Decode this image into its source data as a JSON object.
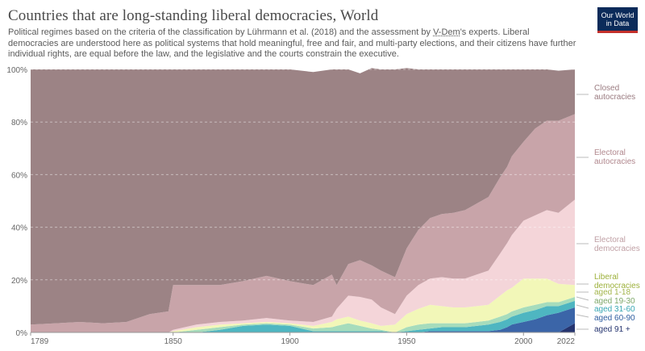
{
  "header": {
    "title": "Countries that are long-standing liberal democracies, World",
    "subtitle_part1": "Political regimes based on the criteria of the classification by Lührmann et al. (2018) and the assessment by ",
    "subtitle_link": "V-Dem",
    "subtitle_part2": "'s experts. Liberal democracies are understood here as political systems that hold meaningful, free and fair, and multi-party elections, and their citizens have further individual rights, are equal before the law, and the legislative and the courts constrain the executive.",
    "logo_line1": "Our World",
    "logo_line2": "in Data"
  },
  "chart_data": {
    "type": "area",
    "stacked": true,
    "title": "Countries that are long-standing liberal democracies, World",
    "xlabel": "",
    "ylabel": "",
    "xlim": [
      1789,
      2022
    ],
    "ylim": [
      0,
      100
    ],
    "x_ticks": [
      "1789",
      "1850",
      "1900",
      "1950",
      "2000",
      "2022"
    ],
    "y_ticks": [
      "0%",
      "20%",
      "40%",
      "60%",
      "80%",
      "100%"
    ],
    "grid": true,
    "legend_position": "right",
    "years": [
      1789,
      1800,
      1810,
      1820,
      1830,
      1840,
      1848,
      1850,
      1860,
      1870,
      1880,
      1890,
      1900,
      1910,
      1918,
      1920,
      1925,
      1930,
      1935,
      1939,
      1945,
      1950,
      1955,
      1960,
      1965,
      1970,
      1975,
      1980,
      1985,
      1990,
      1993,
      1995,
      2000,
      2005,
      2010,
      2015,
      2022
    ],
    "series": [
      {
        "name": "aged 91 +",
        "color": "#25346f",
        "values": [
          0,
          0,
          0,
          0,
          0,
          0,
          0,
          0,
          0,
          0,
          0,
          0,
          0,
          0,
          0,
          0,
          0,
          0,
          0,
          0,
          0,
          0,
          0,
          0,
          0,
          0,
          0,
          0,
          0,
          0,
          0,
          0,
          0,
          0,
          0,
          0,
          3.5
        ]
      },
      {
        "name": "aged 60-90",
        "color": "#3b65a8",
        "values": [
          0,
          0,
          0,
          0,
          0,
          0,
          0,
          0,
          0,
          0,
          0,
          0,
          0,
          0,
          0,
          0,
          0,
          0,
          0,
          0,
          0,
          0,
          0,
          0.5,
          0.5,
          0.5,
          0.5,
          0.5,
          0.5,
          1,
          2,
          3,
          4,
          5,
          6.5,
          7.5,
          6
        ]
      },
      {
        "name": "aged 31-60",
        "color": "#4eb6c1",
        "values": [
          0,
          0,
          0,
          0,
          0,
          0,
          0,
          0,
          0,
          1,
          2.5,
          3,
          2.5,
          0.5,
          0.5,
          0.5,
          0.5,
          0.5,
          0.5,
          0.5,
          0,
          0.5,
          1,
          1,
          1.5,
          1.5,
          1.5,
          2,
          2.5,
          3,
          3,
          3,
          3.5,
          3.5,
          3.5,
          2.5,
          2.5
        ]
      },
      {
        "name": "aged 19-30",
        "color": "#a6dcbc",
        "values": [
          0,
          0,
          0,
          0,
          0,
          0,
          0,
          0,
          1,
          1,
          0.5,
          0.5,
          0.5,
          1,
          1.5,
          2,
          3,
          2,
          1,
          0.5,
          0,
          1.5,
          2,
          2,
          1.5,
          1.5,
          1.5,
          1.5,
          1.5,
          2,
          2,
          2,
          2,
          2,
          1.5,
          1.5,
          1.5
        ]
      },
      {
        "name": "aged 1-18",
        "color": "#f2f7b8",
        "values": [
          0,
          0,
          0,
          0,
          0,
          0,
          0,
          0.5,
          1,
          1,
          0.5,
          0.5,
          0.5,
          1,
          2,
          2.5,
          2.5,
          2,
          2,
          1.5,
          3,
          5,
          6,
          7,
          6.5,
          6,
          6,
          6,
          6,
          8,
          9,
          9,
          11,
          10,
          9,
          7,
          4.5
        ]
      },
      {
        "name": "Electoral democracies",
        "color": "#f4d5d9",
        "values": [
          0,
          0,
          0,
          0,
          0,
          0,
          0,
          0.5,
          1,
          1,
          1,
          1.5,
          1,
          1.5,
          2,
          4,
          8,
          9,
          9,
          7,
          4,
          7,
          9,
          10,
          11,
          11,
          11,
          12,
          13,
          16,
          18,
          20,
          22,
          24,
          26,
          27,
          32.5
        ]
      },
      {
        "name": "Electoral autocracies",
        "color": "#c8a4a9",
        "values": [
          3,
          3.5,
          4,
          3.5,
          4,
          7,
          8,
          17,
          15,
          14,
          15,
          16,
          15,
          14,
          16,
          9,
          12,
          14,
          13,
          14,
          14,
          18,
          21,
          23,
          24,
          25,
          26,
          27,
          28,
          29,
          29,
          30,
          30,
          33,
          34,
          35,
          32.5
        ]
      },
      {
        "name": "Closed autocracies",
        "color": "#9c8385",
        "values": [
          97,
          96.5,
          96,
          96.5,
          96,
          93,
          92,
          82,
          82,
          82,
          80.5,
          78.5,
          80.5,
          81,
          78,
          82,
          74,
          71,
          75,
          76.5,
          79,
          68.5,
          61,
          56.5,
          55,
          54.5,
          53.5,
          51,
          48.5,
          41,
          37,
          33,
          27.5,
          22.5,
          19.5,
          19,
          17
        ]
      }
    ]
  },
  "legend": {
    "closed_line1": "Closed",
    "closed_line2": "autocracies",
    "elec_aut_line1": "Electoral",
    "elec_aut_line2": "autocracies",
    "elec_dem_line1": "Electoral",
    "elec_dem_line2": "democracies",
    "liberal_line1": "Liberal",
    "liberal_line2": "democracies",
    "aged_1_18": "aged 1-18",
    "aged_19_30": "aged 19-30",
    "aged_31_60": "aged 31-60",
    "aged_60_90": "aged 60-90",
    "aged_91": "aged 91 +",
    "colors": {
      "closed": "#9a7b80",
      "elec_aut": "#b1888e",
      "elec_dem": "#c0a0a5",
      "liberal": "#9cb03a",
      "aged_1_18": "#a3b54c",
      "aged_19_30": "#7fa86a",
      "aged_31_60": "#39a7b3",
      "aged_60_90": "#2f5e9f",
      "aged_91": "#25346f"
    }
  }
}
